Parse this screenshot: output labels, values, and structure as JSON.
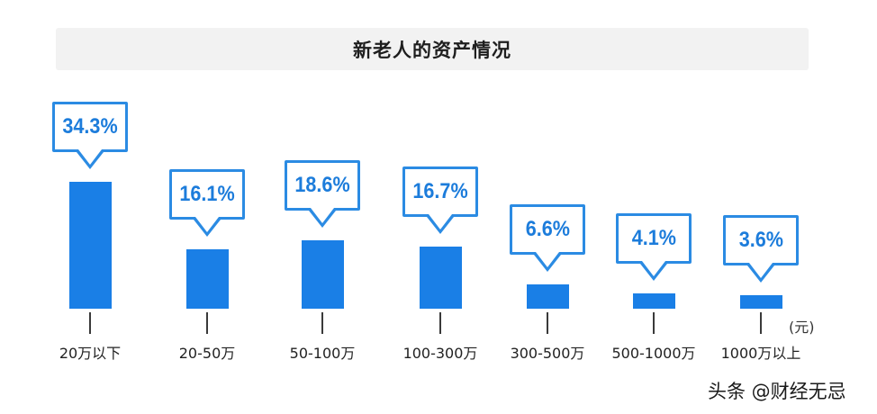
{
  "watermark": "头条 @财经无忌",
  "colors": {
    "bar": "#1a7fe6",
    "callout_border": "#2b8be3",
    "callout_text": "#1c7cdb",
    "title_background": "#f2f2f2"
  },
  "chart_data": {
    "type": "bar",
    "title": "新老人的资产情况",
    "categories": [
      "20万以下",
      "20-50万",
      "50-100万",
      "100-300万",
      "300-500万",
      "500-1000万",
      "1000万以上"
    ],
    "values": [
      34.3,
      16.1,
      18.6,
      16.7,
      6.6,
      4.1,
      3.6
    ],
    "data_labels": [
      "34.3%",
      "16.1%",
      "18.6%",
      "16.7%",
      "6.6%",
      "4.1%",
      "3.6%"
    ],
    "unit": "(元)",
    "grid": false,
    "legend": "none"
  }
}
